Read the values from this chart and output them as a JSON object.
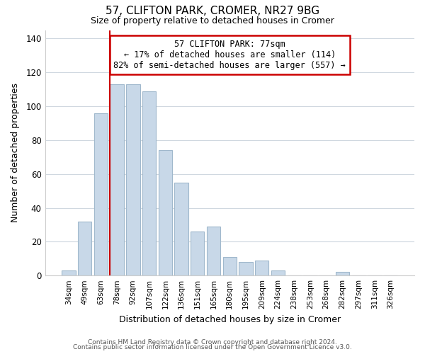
{
  "title": "57, CLIFTON PARK, CROMER, NR27 9BG",
  "subtitle": "Size of property relative to detached houses in Cromer",
  "xlabel": "Distribution of detached houses by size in Cromer",
  "ylabel": "Number of detached properties",
  "bin_labels": [
    "34sqm",
    "49sqm",
    "63sqm",
    "78sqm",
    "92sqm",
    "107sqm",
    "122sqm",
    "136sqm",
    "151sqm",
    "165sqm",
    "180sqm",
    "195sqm",
    "209sqm",
    "224sqm",
    "238sqm",
    "253sqm",
    "268sqm",
    "282sqm",
    "297sqm",
    "311sqm",
    "326sqm"
  ],
  "bar_values": [
    3,
    32,
    96,
    113,
    113,
    109,
    74,
    55,
    26,
    29,
    11,
    8,
    9,
    3,
    0,
    0,
    0,
    2,
    0,
    0,
    0
  ],
  "bar_color": "#c8d8e8",
  "bar_edge_color": "#a0b8cc",
  "marker_line_index": 3,
  "marker_label": "57 CLIFTON PARK: 77sqm",
  "annotation_line1": "← 17% of detached houses are smaller (114)",
  "annotation_line2": "82% of semi-detached houses are larger (557) →",
  "annotation_box_color": "#ffffff",
  "annotation_box_edge": "#cc0000",
  "marker_line_color": "#cc0000",
  "ylim": [
    0,
    145
  ],
  "yticks": [
    0,
    20,
    40,
    60,
    80,
    100,
    120,
    140
  ],
  "footer1": "Contains HM Land Registry data © Crown copyright and database right 2024.",
  "footer2": "Contains public sector information licensed under the Open Government Licence v3.0.",
  "bg_color": "#ffffff",
  "grid_color": "#d0d8e0"
}
